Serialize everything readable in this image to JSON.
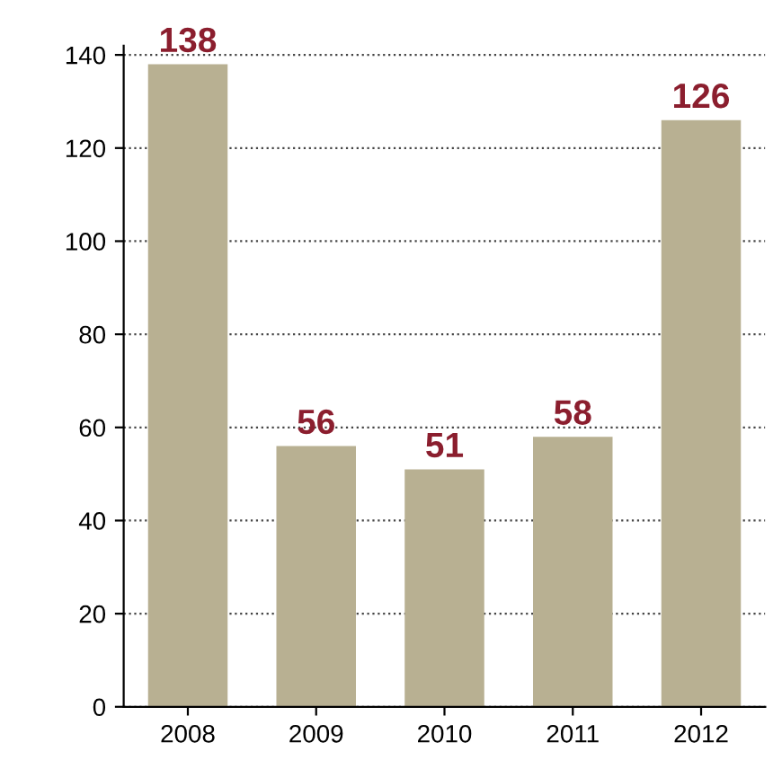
{
  "chart_data": {
    "type": "bar",
    "categories": [
      "2008",
      "2009",
      "2010",
      "2011",
      "2012"
    ],
    "values": [
      138,
      56,
      51,
      58,
      126
    ],
    "color": "#b8b092",
    "data_labels": true,
    "ylim": [
      0,
      142
    ],
    "yticks": [
      0,
      20,
      40,
      60,
      80,
      100,
      120,
      140
    ],
    "grid": "y",
    "line_style": "dotted"
  }
}
